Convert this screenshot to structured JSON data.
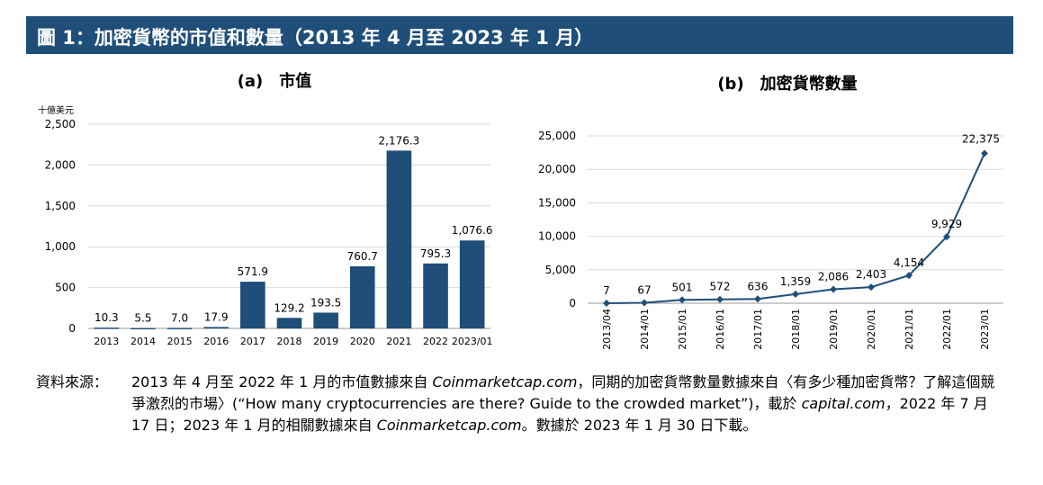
{
  "header": {
    "title": "圖 1：加密貨幣的市值和數量（2013 年 4 月至 2023 年 1 月）"
  },
  "colors": {
    "header_bg": "#1f4e79",
    "bar": "#1f4e79",
    "line": "#1f4e79",
    "grid": "#d9d9d9"
  },
  "chart_data": [
    {
      "type": "bar",
      "title": "(a)　市值",
      "unit_label": "十億美元",
      "categories": [
        "2013",
        "2014",
        "2015",
        "2016",
        "2017",
        "2018",
        "2019",
        "2020",
        "2021",
        "2022",
        "2023/01"
      ],
      "values": [
        10.3,
        5.5,
        7.0,
        17.9,
        571.9,
        129.2,
        193.5,
        760.7,
        2176.3,
        795.3,
        1076.6
      ],
      "value_labels": [
        "10.3",
        "5.5",
        "7.0",
        "17.9",
        "571.9",
        "129.2",
        "193.5",
        "760.7",
        "2,176.3",
        "795.3",
        "1,076.6"
      ],
      "ylim": [
        0,
        2500
      ],
      "yticks": [
        "0",
        "500",
        "1,000",
        "1,500",
        "2,000",
        "2,500"
      ],
      "grid": true
    },
    {
      "type": "line",
      "title": "(b)　加密貨幣數量",
      "categories": [
        "2013/04",
        "2014/01",
        "2015/01",
        "2016/01",
        "2017/01",
        "2018/01",
        "2019/01",
        "2020/01",
        "2021/01",
        "2022/01",
        "2023/01"
      ],
      "values": [
        7,
        67,
        501,
        572,
        636,
        1359,
        2086,
        2403,
        4154,
        9929,
        22375
      ],
      "value_labels": [
        "7",
        "67",
        "501",
        "572",
        "636",
        "1,359",
        "2,086",
        "2,403",
        "4,154",
        "9,929",
        "22,375"
      ],
      "ylim": [
        0,
        25000
      ],
      "yticks": [
        "0",
        "5,000",
        "10,000",
        "15,000",
        "20,000",
        "25,000"
      ],
      "grid": true,
      "marker": "diamond"
    }
  ],
  "source": {
    "label": "資料來源：",
    "seg1": "2013 年 4 月至 2022 年 1 月的市值數據來自 ",
    "seg2": "Coinmarketcap.com",
    "seg3": "，同期的加密貨幣數量數據來自〈有多少種加密貨幣？了解這個競爭激烈的市場〉(“How many cryptocurrencies are there? Guide to the crowded market”)，載於 ",
    "seg4": "capital.com",
    "seg5": "，2022 年 7 月 17 日；2023 年 1 月的相關數據來自 ",
    "seg6": "Coinmarketcap.com",
    "seg7": "。數據於 2023 年 1 月 30 日下載。"
  }
}
